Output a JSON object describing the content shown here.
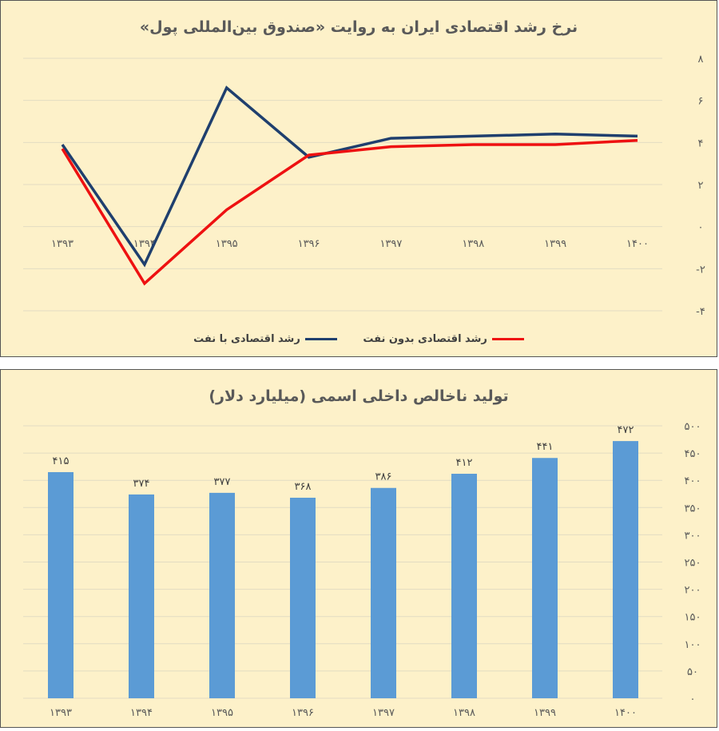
{
  "chart_data": [
    {
      "type": "line",
      "title": "نرخ رشد اقتصادی ایران به روایت «صندوق بین‌المللی پول»",
      "categories": [
        "۱۳۹۳",
        "۱۳۹۴",
        "۱۳۹۵",
        "۱۳۹۶",
        "۱۳۹۷",
        "۱۳۹۸",
        "۱۳۹۹",
        "۱۴۰۰"
      ],
      "y_ticks": [
        "۸",
        "۶",
        "۴",
        "۲",
        "۰",
        "-۲",
        "-۴"
      ],
      "ylim": [
        -4,
        8
      ],
      "y_axis_side": "right",
      "x_axis_reversed": true,
      "grid": true,
      "legend_position": "bottom",
      "series": [
        {
          "name": "رشد اقتصادی با نفت",
          "color": "#1f3f6e",
          "values": [
            3.9,
            -1.8,
            6.6,
            3.3,
            4.2,
            4.3,
            4.4,
            4.3
          ]
        },
        {
          "name": "رشد اقتصادی بدون نفت",
          "color": "#ee1111",
          "values": [
            3.7,
            -2.7,
            0.8,
            3.4,
            3.8,
            3.9,
            3.9,
            4.1
          ]
        }
      ]
    },
    {
      "type": "bar",
      "title": "تولید ناخالص داخلی اسمی (میلیارد دلار)",
      "categories": [
        "۱۳۹۳",
        "۱۳۹۴",
        "۱۳۹۵",
        "۱۳۹۶",
        "۱۳۹۷",
        "۱۳۹۸",
        "۱۳۹۹",
        "۱۴۰۰"
      ],
      "values": [
        415,
        374,
        377,
        368,
        386,
        412,
        441,
        472
      ],
      "value_labels": [
        "۴۱۵",
        "۳۷۴",
        "۳۷۷",
        "۳۶۸",
        "۳۸۶",
        "۴۱۲",
        "۴۴۱",
        "۴۷۲"
      ],
      "y_ticks": [
        "۵۰۰",
        "۴۵۰",
        "۴۰۰",
        "۳۵۰",
        "۳۰۰",
        "۲۵۰",
        "۲۰۰",
        "۱۵۰",
        "۱۰۰",
        "۵۰",
        "۰"
      ],
      "ylim": [
        0,
        500
      ],
      "y_axis_side": "right",
      "x_axis_reversed": true,
      "grid": true,
      "bar_color": "#5b9bd5"
    }
  ]
}
